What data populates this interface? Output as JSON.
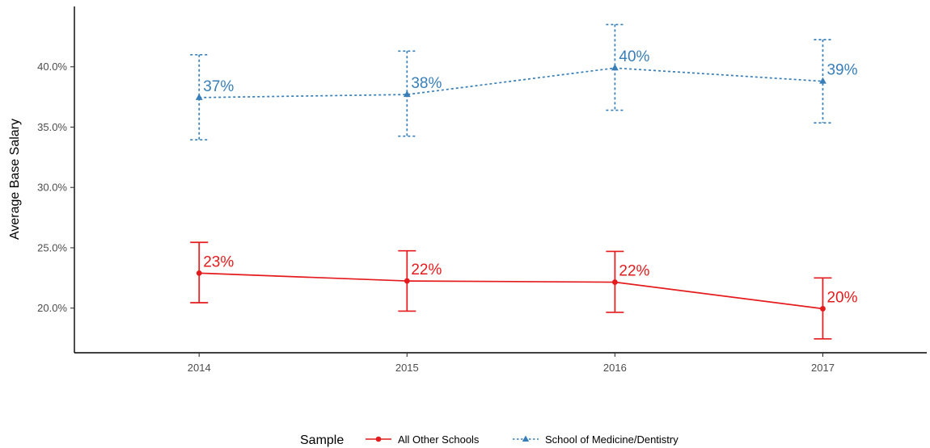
{
  "chart_data": {
    "type": "line",
    "title": "",
    "xlabel": "",
    "ylabel": "Average Base Salary",
    "x": [
      "2014",
      "2015",
      "2016",
      "2017"
    ],
    "xlim": [
      2013.4,
      2017.5
    ],
    "ylim": [
      16.3,
      45.0
    ],
    "yticks": [
      20,
      25,
      30,
      35,
      40
    ],
    "ytick_labels": [
      "20.0%",
      "25.0%",
      "30.0%",
      "35.0%",
      "40.0%"
    ],
    "grid": false,
    "legend": {
      "title": "Sample",
      "position": "bottom"
    },
    "series": [
      {
        "name": "All Other Schools",
        "color": "#e41a1c",
        "linestyle": "solid",
        "marker": "circle",
        "values": [
          22.9,
          22.25,
          22.15,
          19.95
        ],
        "lower": [
          20.45,
          19.75,
          19.65,
          17.45
        ],
        "upper": [
          25.45,
          24.75,
          24.7,
          22.5
        ],
        "labels": [
          "23%",
          "22%",
          "22%",
          "20%"
        ]
      },
      {
        "name": "School of Medicine/Dentistry",
        "color": "#377eb8",
        "linestyle": "dotted",
        "marker": "triangle",
        "values": [
          37.45,
          37.7,
          39.9,
          38.8
        ],
        "lower": [
          33.95,
          34.25,
          36.4,
          35.35
        ],
        "upper": [
          41.0,
          41.3,
          43.5,
          42.25
        ],
        "labels": [
          "37%",
          "38%",
          "40%",
          "39%"
        ]
      }
    ]
  }
}
